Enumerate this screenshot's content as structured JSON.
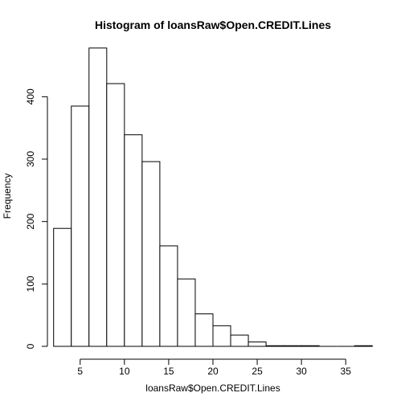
{
  "chart_data": {
    "type": "bar",
    "title": "Histogram of loansRaw$Open.CREDIT.Lines",
    "xlabel": "loansRaw$Open.CREDIT.Lines",
    "ylabel": "Frequency",
    "bin_edges": [
      2,
      4,
      6,
      8,
      10,
      12,
      14,
      16,
      18,
      20,
      22,
      24,
      26,
      28,
      30,
      32,
      34,
      36,
      38
    ],
    "values": [
      189,
      385,
      478,
      421,
      339,
      296,
      161,
      108,
      52,
      33,
      18,
      7,
      1,
      1,
      1,
      0,
      0,
      1
    ],
    "xlim": [
      1.3,
      38.7
    ],
    "ylim": [
      0,
      479
    ],
    "x_ticks": [
      5,
      10,
      15,
      20,
      25,
      30,
      35
    ],
    "y_ticks": [
      0,
      100,
      200,
      300,
      400
    ],
    "grid": false
  }
}
